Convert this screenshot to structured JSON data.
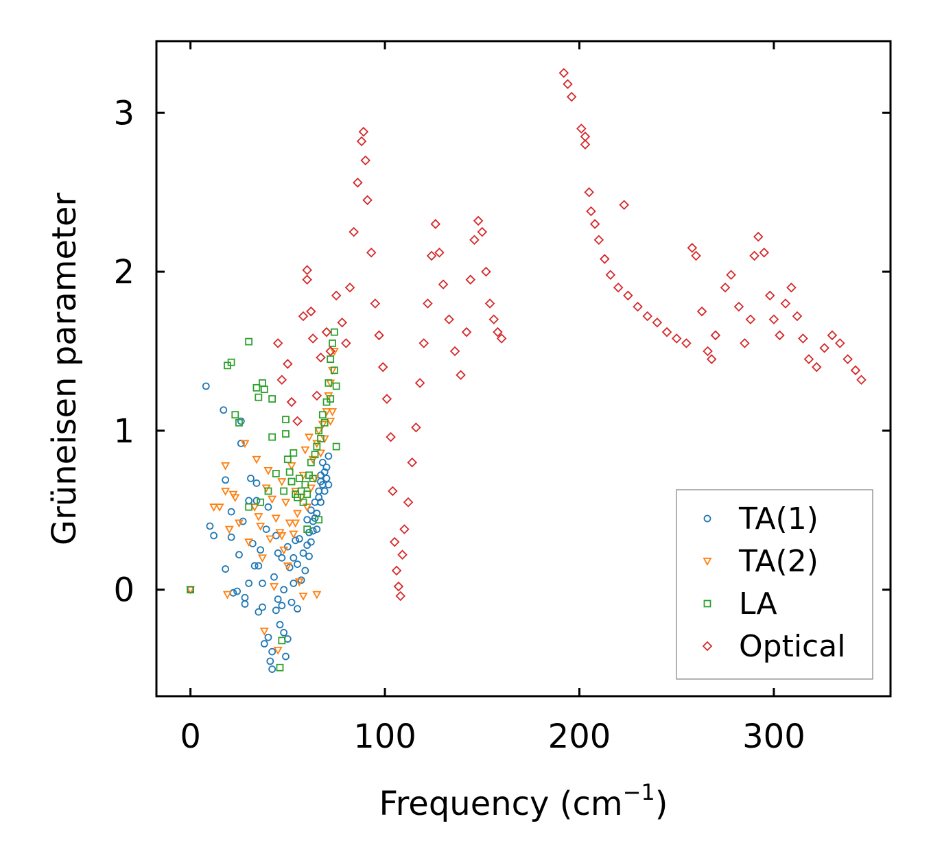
{
  "chart_data": {
    "type": "scatter",
    "title": "",
    "xlabel": "Frequency (cm",
    "xlabel_sup": "−1",
    "xlabel_close": ")",
    "ylabel": "Grüneisen parameter",
    "xlim": [
      -17.5,
      360
    ],
    "ylim": [
      -0.67,
      3.45
    ],
    "xticks": [
      0,
      100,
      200,
      300
    ],
    "yticks": [
      0,
      1,
      2,
      3
    ],
    "xtick_labels": [
      "0",
      "100",
      "200",
      "300"
    ],
    "ytick_labels": [
      "0",
      "1",
      "2",
      "3"
    ],
    "legend_position": "lower-right",
    "series": [
      {
        "name": "TA(1)",
        "marker": "circle",
        "color": "#1f77b4",
        "points": [
          [
            0,
            0
          ],
          [
            8,
            1.28
          ],
          [
            10,
            0.4
          ],
          [
            12,
            0.34
          ],
          [
            17,
            1.13
          ],
          [
            18,
            0.69
          ],
          [
            18,
            0.13
          ],
          [
            21,
            0.33
          ],
          [
            21,
            0.49
          ],
          [
            22,
            -0.02
          ],
          [
            24,
            -0.01
          ],
          [
            25,
            0.22
          ],
          [
            26,
            1.06
          ],
          [
            26,
            0.92
          ],
          [
            27,
            0.43
          ],
          [
            28,
            -0.09
          ],
          [
            28,
            -0.05
          ],
          [
            30,
            0.56
          ],
          [
            30,
            0.04
          ],
          [
            31,
            0.7
          ],
          [
            32,
            0.29
          ],
          [
            33,
            0.15
          ],
          [
            34,
            0.67
          ],
          [
            34,
            0.56
          ],
          [
            35,
            0.15
          ],
          [
            35,
            -0.14
          ],
          [
            36,
            0.25
          ],
          [
            37,
            -0.11
          ],
          [
            37,
            0.04
          ],
          [
            38,
            -0.34
          ],
          [
            39,
            0.38
          ],
          [
            40,
            -0.3
          ],
          [
            40,
            0.52
          ],
          [
            41,
            -0.45
          ],
          [
            42,
            -0.5
          ],
          [
            42,
            -0.39
          ],
          [
            43,
            0.08
          ],
          [
            44,
            -0.13
          ],
          [
            44,
            0.34
          ],
          [
            45,
            0.23
          ],
          [
            45,
            -0.06
          ],
          [
            46,
            -0.22
          ],
          [
            47,
            -0.1
          ],
          [
            47,
            0.2
          ],
          [
            48,
            0.0
          ],
          [
            48,
            -0.27
          ],
          [
            49,
            -0.42
          ],
          [
            50,
            0.27
          ],
          [
            50,
            -0.31
          ],
          [
            51,
            0.14
          ],
          [
            52,
            -0.08
          ],
          [
            53,
            0.2
          ],
          [
            53,
            0.04
          ],
          [
            54,
            0.31
          ],
          [
            55,
            0.16
          ],
          [
            55,
            -0.12
          ],
          [
            56,
            0.32
          ],
          [
            57,
            0.06
          ],
          [
            58,
            0.23
          ],
          [
            59,
            0.12
          ],
          [
            60,
            0.28
          ],
          [
            60,
            0.44
          ],
          [
            61,
            0.21
          ],
          [
            61,
            0.36
          ],
          [
            62,
            0.3
          ],
          [
            62,
            0.5
          ],
          [
            63,
            0.37
          ],
          [
            63,
            0.43
          ],
          [
            64,
            0.45
          ],
          [
            64,
            0.55
          ],
          [
            65,
            0.48
          ],
          [
            65,
            0.38
          ],
          [
            66,
            0.58
          ],
          [
            66,
            0.62
          ],
          [
            67,
            0.55
          ],
          [
            67,
            0.68
          ],
          [
            67,
            0.72
          ],
          [
            68,
            0.66
          ],
          [
            68,
            0.8
          ],
          [
            69,
            0.74
          ],
          [
            69,
            0.62
          ],
          [
            70,
            0.77
          ],
          [
            70,
            0.7
          ],
          [
            71,
            0.84
          ],
          [
            71,
            0.66
          ]
        ]
      },
      {
        "name": "TA(2)",
        "marker": "triangle-down",
        "color": "#ff7f0e",
        "points": [
          [
            0,
            0
          ],
          [
            12,
            0.52
          ],
          [
            15,
            0.52
          ],
          [
            18,
            0.78
          ],
          [
            18,
            0.62
          ],
          [
            19,
            -0.03
          ],
          [
            20,
            0.38
          ],
          [
            22,
            0.6
          ],
          [
            23,
            0.58
          ],
          [
            25,
            0.42
          ],
          [
            28,
            0.92
          ],
          [
            30,
            0.3
          ],
          [
            33,
            0.52
          ],
          [
            34,
            0.82
          ],
          [
            35,
            0.46
          ],
          [
            36,
            0.4
          ],
          [
            37,
            0.2
          ],
          [
            38,
            -0.26
          ],
          [
            39,
            0.64
          ],
          [
            40,
            0.75
          ],
          [
            41,
            0.32
          ],
          [
            42,
            0.57
          ],
          [
            43,
            0.02
          ],
          [
            44,
            0.45
          ],
          [
            45,
            -0.38
          ],
          [
            46,
            0.36
          ],
          [
            47,
            0.68
          ],
          [
            48,
            0.25
          ],
          [
            49,
            0.55
          ],
          [
            50,
            0.15
          ],
          [
            51,
            0.42
          ],
          [
            52,
            0.78
          ],
          [
            53,
            0.35
          ],
          [
            54,
            0.62
          ],
          [
            55,
            0.48
          ],
          [
            56,
            0.05
          ],
          [
            57,
            0.58
          ],
          [
            58,
            0.72
          ],
          [
            59,
            0.88
          ],
          [
            60,
            0.52
          ],
          [
            61,
            0.96
          ],
          [
            62,
            0.64
          ],
          [
            63,
            0.82
          ],
          [
            64,
            0.7
          ],
          [
            65,
            0.92
          ],
          [
            66,
            1.0
          ],
          [
            67,
            0.86
          ],
          [
            68,
            1.04
          ],
          [
            69,
            0.95
          ],
          [
            70,
            1.12
          ],
          [
            71,
            1.22
          ],
          [
            72,
            1.3
          ],
          [
            72,
            1.06
          ],
          [
            73,
            1.12
          ],
          [
            73,
            1.38
          ],
          [
            74,
            1.5
          ],
          [
            65,
            -0.03
          ],
          [
            58,
            -0.04
          ],
          [
            54,
            0.42
          ],
          [
            47,
            0.34
          ]
        ]
      },
      {
        "name": "LA",
        "marker": "square",
        "color": "#2ca02c",
        "points": [
          [
            0,
            0
          ],
          [
            19,
            1.41
          ],
          [
            21,
            1.43
          ],
          [
            23,
            1.1
          ],
          [
            25,
            1.05
          ],
          [
            30,
            1.56
          ],
          [
            30,
            0.52
          ],
          [
            34,
            1.27
          ],
          [
            35,
            1.21
          ],
          [
            36,
            0.55
          ],
          [
            37,
            1.3
          ],
          [
            38,
            1.26
          ],
          [
            40,
            0.62
          ],
          [
            42,
            1.2
          ],
          [
            42,
            0.96
          ],
          [
            44,
            0.73
          ],
          [
            46,
            -0.49
          ],
          [
            47,
            -0.32
          ],
          [
            48,
            0.62
          ],
          [
            49,
            1.07
          ],
          [
            49,
            0.98
          ],
          [
            50,
            0.82
          ],
          [
            51,
            0.74
          ],
          [
            52,
            0.68
          ],
          [
            53,
            0.86
          ],
          [
            54,
            0.6
          ],
          [
            55,
            0.58
          ],
          [
            56,
            0.7
          ],
          [
            57,
            0.62
          ],
          [
            58,
            0.55
          ],
          [
            59,
            0.66
          ],
          [
            60,
            0.6
          ],
          [
            61,
            0.72
          ],
          [
            62,
            0.8
          ],
          [
            63,
            0.7
          ],
          [
            64,
            0.85
          ],
          [
            65,
            0.9
          ],
          [
            66,
            1.0
          ],
          [
            67,
            0.95
          ],
          [
            68,
            1.1
          ],
          [
            69,
            1.05
          ],
          [
            70,
            1.18
          ],
          [
            71,
            1.3
          ],
          [
            72,
            1.2
          ],
          [
            72,
            1.45
          ],
          [
            73,
            1.55
          ],
          [
            74,
            1.62
          ],
          [
            74,
            1.38
          ],
          [
            75,
            1.28
          ],
          [
            75,
            0.9
          ],
          [
            66,
            0.44
          ],
          [
            60,
            0.38
          ]
        ]
      },
      {
        "name": "Optical",
        "marker": "diamond",
        "color": "#d62728",
        "points": [
          [
            45,
            1.55
          ],
          [
            47,
            1.32
          ],
          [
            50,
            1.42
          ],
          [
            52,
            1.18
          ],
          [
            55,
            1.06
          ],
          [
            58,
            1.72
          ],
          [
            60,
            2.01
          ],
          [
            60,
            1.95
          ],
          [
            62,
            1.75
          ],
          [
            63,
            1.58
          ],
          [
            65,
            1.22
          ],
          [
            67,
            1.46
          ],
          [
            70,
            1.62
          ],
          [
            72,
            1.5
          ],
          [
            75,
            1.85
          ],
          [
            78,
            1.68
          ],
          [
            80,
            1.55
          ],
          [
            82,
            1.9
          ],
          [
            84,
            2.25
          ],
          [
            86,
            2.56
          ],
          [
            88,
            2.82
          ],
          [
            89,
            2.88
          ],
          [
            90,
            2.7
          ],
          [
            91,
            2.45
          ],
          [
            93,
            2.12
          ],
          [
            95,
            1.8
          ],
          [
            97,
            1.6
          ],
          [
            99,
            1.4
          ],
          [
            101,
            1.2
          ],
          [
            103,
            0.96
          ],
          [
            104,
            0.62
          ],
          [
            105,
            0.3
          ],
          [
            106,
            0.12
          ],
          [
            107,
            0.02
          ],
          [
            108,
            -0.04
          ],
          [
            109,
            0.22
          ],
          [
            110,
            0.38
          ],
          [
            112,
            0.55
          ],
          [
            114,
            0.8
          ],
          [
            116,
            1.02
          ],
          [
            118,
            1.3
          ],
          [
            120,
            1.55
          ],
          [
            122,
            1.8
          ],
          [
            124,
            2.1
          ],
          [
            126,
            2.3
          ],
          [
            128,
            2.12
          ],
          [
            130,
            1.92
          ],
          [
            133,
            1.7
          ],
          [
            136,
            1.5
          ],
          [
            139,
            1.35
          ],
          [
            142,
            1.62
          ],
          [
            144,
            1.95
          ],
          [
            146,
            2.2
          ],
          [
            148,
            2.32
          ],
          [
            150,
            2.25
          ],
          [
            152,
            2.0
          ],
          [
            154,
            1.8
          ],
          [
            156,
            1.7
          ],
          [
            158,
            1.62
          ],
          [
            160,
            1.58
          ],
          [
            192,
            3.25
          ],
          [
            194,
            3.18
          ],
          [
            196,
            3.1
          ],
          [
            201,
            2.9
          ],
          [
            203,
            2.85
          ],
          [
            203,
            2.8
          ],
          [
            205,
            2.5
          ],
          [
            206,
            2.38
          ],
          [
            208,
            2.3
          ],
          [
            210,
            2.2
          ],
          [
            213,
            2.08
          ],
          [
            216,
            1.98
          ],
          [
            220,
            1.9
          ],
          [
            223,
            2.42
          ],
          [
            225,
            1.85
          ],
          [
            230,
            1.78
          ],
          [
            235,
            1.72
          ],
          [
            240,
            1.68
          ],
          [
            245,
            1.62
          ],
          [
            250,
            1.58
          ],
          [
            255,
            1.55
          ],
          [
            258,
            2.15
          ],
          [
            260,
            2.1
          ],
          [
            263,
            1.75
          ],
          [
            266,
            1.5
          ],
          [
            268,
            1.45
          ],
          [
            270,
            1.6
          ],
          [
            275,
            1.9
          ],
          [
            278,
            1.98
          ],
          [
            282,
            1.78
          ],
          [
            285,
            1.55
          ],
          [
            288,
            1.7
          ],
          [
            290,
            2.1
          ],
          [
            292,
            2.22
          ],
          [
            295,
            2.12
          ],
          [
            298,
            1.85
          ],
          [
            300,
            1.7
          ],
          [
            303,
            1.6
          ],
          [
            306,
            1.8
          ],
          [
            309,
            1.9
          ],
          [
            312,
            1.72
          ],
          [
            315,
            1.58
          ],
          [
            318,
            1.45
          ],
          [
            322,
            1.4
          ],
          [
            326,
            1.52
          ],
          [
            330,
            1.6
          ],
          [
            334,
            1.55
          ],
          [
            338,
            1.45
          ],
          [
            342,
            1.38
          ],
          [
            345,
            1.32
          ]
        ]
      }
    ]
  }
}
